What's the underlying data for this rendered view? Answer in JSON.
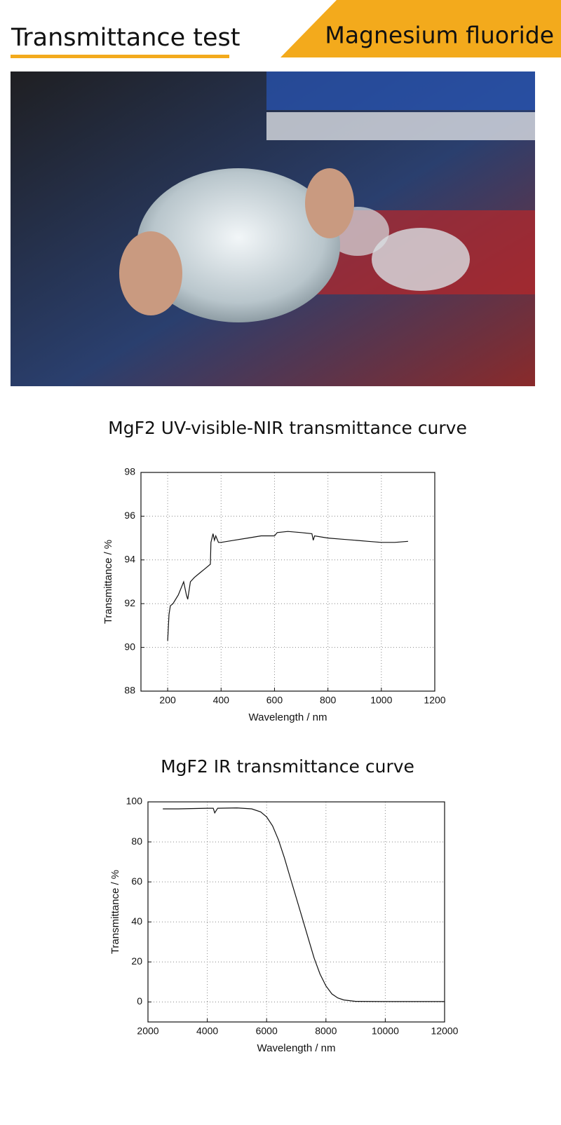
{
  "header": {
    "title": "Transmittance test",
    "tag": "Magnesium fluoride"
  },
  "chart_data": [
    {
      "type": "line",
      "title": "MgF2 UV-visible-NIR transmittance curve",
      "xlabel": "Wavelength / nm",
      "ylabel": "Transmittance / %",
      "x": [
        200,
        205,
        210,
        220,
        240,
        260,
        270,
        275,
        285,
        300,
        320,
        340,
        360,
        362,
        370,
        375,
        380,
        390,
        400,
        450,
        500,
        550,
        600,
        610,
        650,
        700,
        740,
        745,
        750,
        800,
        850,
        900,
        950,
        1000,
        1050,
        1100
      ],
      "values": [
        90.3,
        91.5,
        91.9,
        92.0,
        92.4,
        93.0,
        92.4,
        92.2,
        93.0,
        93.2,
        93.4,
        93.6,
        93.8,
        94.8,
        95.2,
        94.9,
        95.1,
        94.8,
        94.8,
        94.9,
        95.0,
        95.1,
        95.1,
        95.25,
        95.3,
        95.25,
        95.2,
        94.9,
        95.1,
        95.0,
        94.95,
        94.9,
        94.85,
        94.8,
        94.8,
        94.85
      ],
      "color": "#111111",
      "xlim": [
        100,
        1200
      ],
      "xticks": [
        200,
        400,
        600,
        800,
        1000,
        1200
      ],
      "ylim": [
        88,
        98
      ],
      "yticks": [
        88,
        90,
        92,
        94,
        96,
        98
      ],
      "grid": true
    },
    {
      "type": "line",
      "title": "MgF2 IR transmittance curve",
      "xlabel": "Wavelength / nm",
      "ylabel": "Transmittance / %",
      "x": [
        2500,
        3000,
        4000,
        4200,
        4250,
        4350,
        5000,
        5500,
        5800,
        6000,
        6200,
        6400,
        6600,
        6800,
        7000,
        7200,
        7400,
        7600,
        7800,
        8000,
        8200,
        8400,
        8600,
        9000,
        10000,
        11000,
        12000
      ],
      "values": [
        96.5,
        96.5,
        96.8,
        96.8,
        94.5,
        96.8,
        97,
        96.5,
        95,
        92.5,
        88,
        81,
        72,
        62,
        52,
        42,
        32,
        22,
        14,
        8,
        4,
        2,
        1,
        0.3,
        0.2,
        0.2,
        0.2
      ],
      "color": "#111111",
      "xlim": [
        2000,
        12000
      ],
      "xticks": [
        2000,
        4000,
        6000,
        8000,
        10000,
        12000
      ],
      "ylim": [
        -10,
        100
      ],
      "yticks": [
        0,
        20,
        40,
        60,
        80,
        100
      ],
      "grid": true
    }
  ]
}
